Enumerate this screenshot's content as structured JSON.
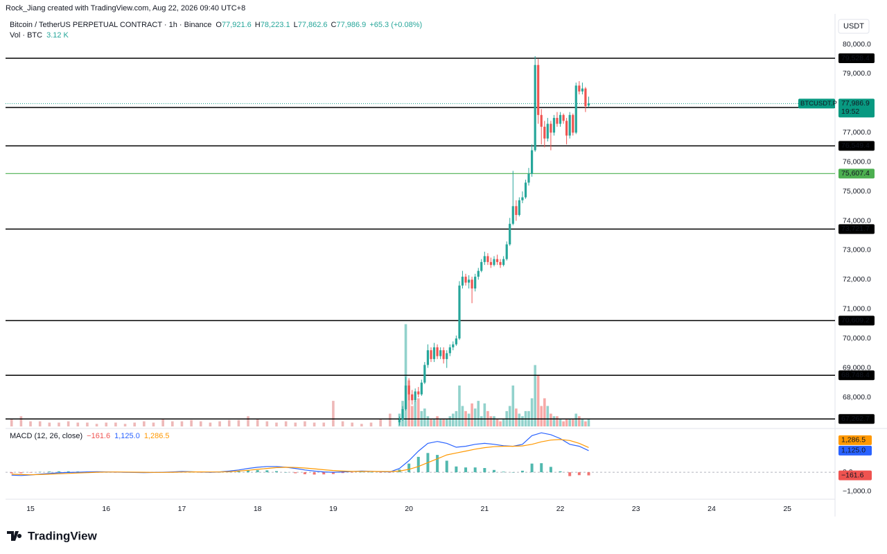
{
  "header": {
    "credit": "Rock_Jiang created with TradingView.com, Aug 22, 2026 09:40 UTC+8",
    "logo": "TradingView"
  },
  "chart_data": {
    "type": "candlestick",
    "title": "Bitcoin / TetherUS PERPETUAL CONTRACT · 1h · Binance",
    "legend": [
      {
        "key": "O",
        "text": "77,921.6"
      },
      {
        "key": "H",
        "text": "78,223.1"
      },
      {
        "key": "L",
        "text": "77,862.6"
      },
      {
        "key": "C",
        "text": "77,986.9"
      }
    ],
    "change": "+65.3 (+0.08%)",
    "volume_label": "Vol · BTC",
    "volume_value": "3.12 K",
    "currency": "USDT",
    "up_color": "#26a69a",
    "down_color": "#ef5350",
    "xlim": [
      14.67,
      25.63
    ],
    "xticks": [
      15,
      16,
      17,
      18,
      19,
      20,
      21,
      22,
      23,
      24,
      25
    ],
    "ylim": [
      67010,
      80920
    ],
    "yticks": [
      {
        "value": 68000,
        "label": "68,000.0"
      },
      {
        "value": 69000,
        "label": "69,000.0"
      },
      {
        "value": 70000,
        "label": "70,000.0"
      },
      {
        "value": 71000,
        "label": "71,000.0"
      },
      {
        "value": 72000,
        "label": "72,000.0"
      },
      {
        "value": 73000,
        "label": "73,000.0"
      },
      {
        "value": 74000,
        "label": "74,000.0"
      },
      {
        "value": 75000,
        "label": "75,000.0"
      },
      {
        "value": 76000,
        "label": "76,000.0"
      },
      {
        "value": 77000,
        "label": "77,000.0"
      },
      {
        "value": 78000,
        "label": "78,000.0"
      },
      {
        "value": 79000,
        "label": "79,000.0"
      },
      {
        "value": 80000,
        "label": "80,000.0"
      }
    ],
    "volume_lim": [
      0,
      160
    ],
    "candles": {
      "x": [
        19.875,
        19.917,
        19.958,
        20,
        20.042,
        20.083,
        20.125,
        20.167,
        20.208,
        20.25,
        20.292,
        20.333,
        20.375,
        20.417,
        20.458,
        20.5,
        20.542,
        20.583,
        20.625,
        20.667,
        20.708,
        20.75,
        20.792,
        20.833,
        20.875,
        20.917,
        20.958,
        21,
        21.042,
        21.083,
        21.125,
        21.167,
        21.208,
        21.25,
        21.292,
        21.333,
        21.375,
        21.417,
        21.458,
        21.5,
        21.542,
        21.583,
        21.625,
        21.667,
        21.708,
        21.75,
        21.792,
        21.833,
        21.875,
        21.917,
        21.958,
        22,
        22.042,
        22.083,
        22.125,
        22.167,
        22.208,
        22.25,
        22.292,
        22.333,
        22.375
      ],
      "open": [
        67150,
        67250,
        67600,
        68400,
        68100,
        67900,
        68200,
        68100,
        68500,
        69100,
        69600,
        69300,
        69700,
        69400,
        69600,
        69300,
        69500,
        69700,
        69800,
        70000,
        71800,
        72100,
        71900,
        72000,
        71700,
        72100,
        72300,
        72600,
        72800,
        72600,
        72500,
        72700,
        72600,
        72500,
        72700,
        73200,
        73900,
        74500,
        74200,
        74700,
        74800,
        75300,
        75600,
        76400,
        79300,
        77600,
        77200,
        76800,
        77300,
        77000,
        77500,
        77300,
        77600,
        77400,
        76900,
        77600,
        77000,
        78600,
        78400,
        78500,
        77921.6
      ],
      "high": [
        67350,
        67700,
        68700,
        68650,
        68250,
        68300,
        68350,
        68600,
        69200,
        69800,
        69700,
        69850,
        69800,
        69700,
        69700,
        69600,
        69800,
        69900,
        70100,
        71950,
        72300,
        72200,
        72150,
        72100,
        72200,
        72400,
        72700,
        72950,
        72900,
        72750,
        72800,
        72850,
        72700,
        72800,
        73300,
        74100,
        75700,
        74700,
        74800,
        75000,
        75400,
        75800,
        76600,
        79600,
        79500,
        77800,
        77400,
        77500,
        77400,
        77600,
        77700,
        77700,
        77650,
        77500,
        77700,
        77650,
        78700,
        78750,
        78700,
        78550,
        78223.1
      ],
      "low": [
        67050,
        67200,
        67550,
        67900,
        67750,
        67850,
        68000,
        68050,
        68450,
        69000,
        69200,
        69200,
        69300,
        69300,
        69150,
        69000,
        69400,
        69600,
        69750,
        69950,
        71700,
        71800,
        71700,
        71200,
        71600,
        72000,
        72250,
        72500,
        72500,
        72400,
        72450,
        72500,
        72400,
        72450,
        72650,
        73150,
        73850,
        74000,
        74150,
        74600,
        74750,
        75200,
        75500,
        76350,
        77300,
        76600,
        76500,
        76700,
        76400,
        76900,
        77200,
        77200,
        77300,
        76600,
        76800,
        76900,
        76950,
        78300,
        78300,
        77700,
        77862.6
      ],
      "close": [
        67250,
        67600,
        68400,
        68100,
        67900,
        68200,
        68100,
        68500,
        69100,
        69600,
        69300,
        69700,
        69400,
        69600,
        69300,
        69500,
        69700,
        69800,
        70000,
        71800,
        72100,
        71900,
        72000,
        71700,
        72100,
        72300,
        72600,
        72800,
        72600,
        72500,
        72700,
        72600,
        72500,
        72700,
        73200,
        73900,
        74500,
        74200,
        74700,
        74800,
        75300,
        75600,
        76400,
        79300,
        77600,
        77200,
        76800,
        77300,
        77000,
        77500,
        77300,
        77600,
        77400,
        76900,
        77600,
        77000,
        78600,
        78400,
        78500,
        77900,
        77986.9
      ],
      "volume": [
        5,
        10,
        40,
        18,
        8,
        10,
        11,
        6,
        7,
        4,
        3,
        3,
        4,
        3,
        3,
        3,
        4,
        5,
        6,
        16,
        8,
        6,
        5,
        9,
        7,
        10,
        4,
        9,
        6,
        4,
        4,
        3,
        2,
        3,
        6,
        8,
        16,
        7,
        5,
        4,
        6,
        6,
        11,
        24,
        20,
        8,
        11,
        8,
        5,
        4,
        4,
        3,
        2,
        3,
        3,
        3,
        5,
        4,
        3,
        2,
        3.12
      ]
    },
    "volume_history": {
      "color": "#e79a9a",
      "x": [
        14.75,
        14.875,
        15,
        15.125,
        15.25,
        15.375,
        15.5,
        15.625,
        15.75,
        15.875,
        16,
        16.125,
        16.25,
        16.375,
        16.5,
        16.625,
        16.75,
        16.875,
        17,
        17.125,
        17.25,
        17.375,
        17.5,
        17.625,
        17.75,
        17.875,
        18,
        18.125,
        18.25,
        18.375,
        18.5,
        18.625,
        18.75,
        18.875,
        19,
        19.125,
        19.25,
        19.375,
        19.5,
        19.625,
        19.75
      ],
      "values": [
        3,
        4,
        2,
        2,
        1.5,
        1.5,
        2,
        1.5,
        1.5,
        1,
        1.5,
        1.5,
        1,
        1.5,
        2,
        1.5,
        3,
        2,
        2,
        2.5,
        2,
        1.5,
        2,
        2.5,
        2.5,
        4,
        3,
        2,
        1.5,
        2,
        1.5,
        2,
        1.5,
        1.5,
        10,
        2,
        1.5,
        1,
        1.5,
        3,
        5
      ]
    },
    "levels": [
      {
        "value": 79528.4,
        "label": "79,528.4",
        "color": "#000000"
      },
      {
        "value": 77855.3,
        "label": "77,855.3",
        "color": "#000000"
      },
      {
        "value": 76549.4,
        "label": "76,549.4",
        "color": "#000000"
      },
      {
        "value": 75607.4,
        "label": "75,607.4",
        "color": "#4caf50"
      },
      {
        "value": 73721.7,
        "label": "73,721.7",
        "color": "#000000"
      },
      {
        "value": 70609.2,
        "label": "70,609.2",
        "color": "#000000"
      },
      {
        "value": 68748.4,
        "label": "68,748.4",
        "color": "#000000"
      },
      {
        "value": 67262.7,
        "label": "67,262.7",
        "color": "#000000"
      }
    ],
    "last_price": {
      "value": 77986.9,
      "label": "77,986.9",
      "symbol": "BTCUSDT.P",
      "countdown": "19:52",
      "color": "#089981"
    },
    "macd": {
      "title": "MACD (12, 26, close)",
      "ylim": [
        -1400,
        2200
      ],
      "yticks": [
        {
          "value": 0,
          "label": "0.0"
        },
        {
          "value": -1000,
          "label": "−1,000.0"
        }
      ],
      "x": [
        14.75,
        14.875,
        15,
        15.125,
        15.25,
        15.375,
        15.5,
        15.625,
        15.75,
        15.875,
        16,
        16.125,
        16.25,
        16.375,
        16.5,
        16.625,
        16.75,
        16.875,
        17,
        17.125,
        17.25,
        17.375,
        17.5,
        17.625,
        17.75,
        17.875,
        18,
        18.125,
        18.25,
        18.375,
        18.5,
        18.625,
        18.75,
        18.875,
        19,
        19.125,
        19.25,
        19.375,
        19.5,
        19.625,
        19.75,
        19.875,
        20,
        20.125,
        20.25,
        20.375,
        20.5,
        20.625,
        20.75,
        20.875,
        21,
        21.125,
        21.25,
        21.375,
        21.5,
        21.625,
        21.75,
        21.875,
        22,
        22.125,
        22.25,
        22.375
      ],
      "series": [
        {
          "color": "#ef5350",
          "kind": "histogram",
          "value_label": "−161.6",
          "values": [
            -50,
            -50,
            -10,
            20,
            40,
            50,
            50,
            40,
            40,
            30,
            10,
            -5,
            -10,
            -15,
            -20,
            -5,
            5,
            20,
            30,
            10,
            -10,
            -15,
            5,
            30,
            60,
            100,
            110,
            100,
            60,
            0,
            -50,
            -100,
            -120,
            -110,
            -90,
            -40,
            -5,
            15,
            5,
            -10,
            -15,
            140,
            450,
            800,
            1000,
            900,
            600,
            300,
            250,
            250,
            220,
            120,
            30,
            0,
            80,
            450,
            470,
            280,
            50,
            -200,
            -150,
            -161.6
          ]
        },
        {
          "color": "#2962ff",
          "kind": "line",
          "value_label": "1,125.0",
          "values": [
            -150,
            -170,
            -140,
            -100,
            -60,
            -30,
            -10,
            0,
            20,
            30,
            20,
            10,
            0,
            -10,
            -20,
            -10,
            0,
            20,
            40,
            30,
            10,
            0,
            20,
            60,
            120,
            200,
            260,
            300,
            300,
            260,
            200,
            120,
            60,
            20,
            0,
            20,
            40,
            60,
            50,
            30,
            20,
            200,
            600,
            1100,
            1500,
            1600,
            1500,
            1300,
            1350,
            1450,
            1500,
            1450,
            1380,
            1350,
            1450,
            1900,
            2050,
            1950,
            1750,
            1450,
            1350,
            1125
          ]
        },
        {
          "color": "#ff9800",
          "kind": "line",
          "value_label": "1,286.5",
          "values": [
            -100,
            -120,
            -130,
            -120,
            -100,
            -80,
            -60,
            -40,
            -20,
            0,
            10,
            15,
            10,
            5,
            0,
            -5,
            -5,
            0,
            10,
            20,
            20,
            15,
            15,
            30,
            60,
            100,
            150,
            200,
            240,
            260,
            250,
            220,
            180,
            130,
            90,
            60,
            45,
            45,
            45,
            40,
            35,
            60,
            150,
            300,
            500,
            700,
            900,
            1000,
            1100,
            1200,
            1280,
            1330,
            1350,
            1350,
            1370,
            1450,
            1580,
            1670,
            1700,
            1650,
            1500,
            1286.5
          ]
        }
      ]
    }
  }
}
